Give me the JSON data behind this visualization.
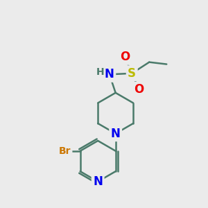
{
  "bg_color": "#ebebeb",
  "bond_color": "#4a7a6a",
  "bond_width": 1.8,
  "atom_colors": {
    "N": "#0000ee",
    "O": "#ee0000",
    "S": "#bbbb00",
    "Br": "#cc7700",
    "H": "#4a7a6a",
    "C": "#4a7a6a"
  },
  "font_size_main": 12,
  "font_size_h": 10
}
